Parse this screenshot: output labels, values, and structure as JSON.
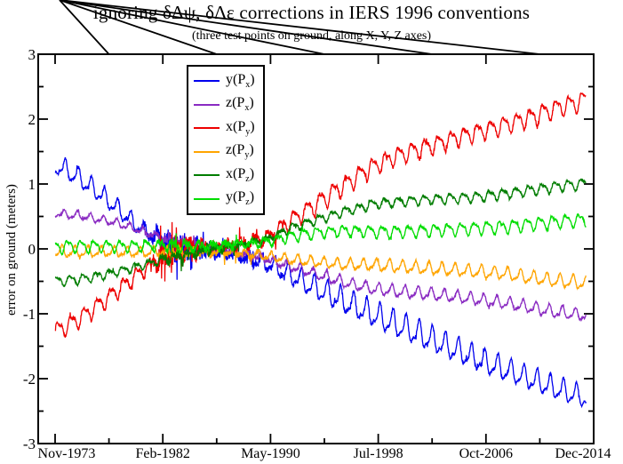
{
  "chart_data": {
    "type": "line",
    "title": "ignoring δΔψ, δΔε corrections in IERS 1996 conventions",
    "subtitle": "(three test points on ground, along X, Y, Z axes)",
    "xlabel": "",
    "ylabel": "error on ground (meters)",
    "ylim": [
      -3,
      3
    ],
    "y_ticks": [
      "3",
      "2",
      "1",
      "0",
      "-1",
      "-2",
      "-3"
    ],
    "y_minor_step": 0.5,
    "x_ticks": [
      "Nov-1973",
      "Feb-1982",
      "May-1990",
      "Jul-1998",
      "Oct-2006",
      "Dec-2014"
    ],
    "x_tick_years": [
      1973.875,
      1982.092,
      1990.308,
      1998.525,
      2006.742,
      2014.958
    ],
    "grid": false,
    "legend_position": "upper-left-inside",
    "oscillation": "annual wiggles + high-frequency noise burst 1981-1990",
    "frame_color": "#000000",
    "series": [
      {
        "id": "y-px",
        "func": "y",
        "point_sub": "x",
        "label_plain": "y(Px)",
        "color": "#0000ee",
        "phase": 0.12,
        "trend": [
          [
            1973.9,
            1.3
          ],
          [
            1975,
            1.18
          ],
          [
            1976,
            1.05
          ],
          [
            1977,
            0.9
          ],
          [
            1978,
            0.73
          ],
          [
            1979,
            0.55
          ],
          [
            1980,
            0.38
          ],
          [
            1981,
            0.24
          ],
          [
            1982,
            0.12
          ],
          [
            1983,
            0.04
          ],
          [
            1984,
            0.0
          ],
          [
            1986,
            -0.03
          ],
          [
            1988,
            -0.09
          ],
          [
            1990,
            -0.22
          ],
          [
            1992,
            -0.42
          ],
          [
            1994,
            -0.63
          ],
          [
            1996,
            -0.82
          ],
          [
            1998,
            -1.0
          ],
          [
            2000,
            -1.18
          ],
          [
            2002,
            -1.35
          ],
          [
            2004,
            -1.52
          ],
          [
            2006,
            -1.7
          ],
          [
            2008,
            -1.85
          ],
          [
            2010,
            -2.0
          ],
          [
            2012,
            -2.15
          ],
          [
            2014.4,
            -2.3
          ]
        ],
        "annual_amp": [
          [
            1973.9,
            -0.17
          ],
          [
            1980,
            -0.14
          ],
          [
            1983,
            -0.08
          ],
          [
            1987,
            -0.06
          ],
          [
            1990,
            -0.14
          ],
          [
            1994,
            -0.2
          ],
          [
            2000,
            -0.22
          ],
          [
            2006,
            -0.2
          ],
          [
            2014.4,
            -0.18
          ]
        ],
        "noise_env": [
          [
            1973.9,
            0.02
          ],
          [
            1980.5,
            0.03
          ],
          [
            1981.5,
            0.12
          ],
          [
            1982.5,
            0.22
          ],
          [
            1984,
            0.18
          ],
          [
            1985.5,
            0.1
          ],
          [
            1988,
            0.08
          ],
          [
            1990,
            0.05
          ],
          [
            1992,
            0.03
          ],
          [
            2014.4,
            0.02
          ]
        ]
      },
      {
        "id": "z-px",
        "func": "z",
        "point_sub": "x",
        "label_plain": "z(Px)",
        "color": "#8a2bc2",
        "phase": 0.2,
        "trend": [
          [
            1973.9,
            0.55
          ],
          [
            1976,
            0.5
          ],
          [
            1978,
            0.43
          ],
          [
            1980,
            0.31
          ],
          [
            1982,
            0.17
          ],
          [
            1984,
            0.07
          ],
          [
            1986,
            0.01
          ],
          [
            1988,
            -0.06
          ],
          [
            1990,
            -0.15
          ],
          [
            1992,
            -0.28
          ],
          [
            1994,
            -0.4
          ],
          [
            1996,
            -0.52
          ],
          [
            1998,
            -0.61
          ],
          [
            2000,
            -0.66
          ],
          [
            2002,
            -0.69
          ],
          [
            2004,
            -0.73
          ],
          [
            2006,
            -0.78
          ],
          [
            2008,
            -0.83
          ],
          [
            2010,
            -0.9
          ],
          [
            2012,
            -0.97
          ],
          [
            2014.4,
            -1.03
          ]
        ],
        "annual_amp": [
          [
            1973.9,
            -0.07
          ],
          [
            1982,
            -0.06
          ],
          [
            1987,
            -0.04
          ],
          [
            1992,
            -0.08
          ],
          [
            2000,
            -0.1
          ],
          [
            2014.4,
            -0.1
          ]
        ],
        "noise_env": [
          [
            1973.9,
            0.015
          ],
          [
            1981,
            0.02
          ],
          [
            1982.5,
            0.07
          ],
          [
            1986,
            0.06
          ],
          [
            1989,
            0.04
          ],
          [
            1992,
            0.02
          ],
          [
            2014.4,
            0.015
          ]
        ]
      },
      {
        "id": "x-py",
        "func": "x",
        "point_sub": "y",
        "label_plain": "x(Py)",
        "color": "#ee0000",
        "phase": 0.12,
        "trend": [
          [
            1973.9,
            -1.27
          ],
          [
            1975,
            -1.16
          ],
          [
            1976,
            -1.03
          ],
          [
            1977,
            -0.89
          ],
          [
            1978,
            -0.74
          ],
          [
            1979,
            -0.58
          ],
          [
            1980,
            -0.42
          ],
          [
            1981,
            -0.27
          ],
          [
            1982,
            -0.13
          ],
          [
            1983,
            -0.04
          ],
          [
            1984,
            0.0
          ],
          [
            1986,
            0.02
          ],
          [
            1988,
            0.07
          ],
          [
            1990,
            0.16
          ],
          [
            1992,
            0.46
          ],
          [
            1994,
            0.72
          ],
          [
            1996,
            1.0
          ],
          [
            1998,
            1.26
          ],
          [
            2000,
            1.44
          ],
          [
            2002,
            1.56
          ],
          [
            2004,
            1.68
          ],
          [
            2006,
            1.8
          ],
          [
            2008,
            1.9
          ],
          [
            2010,
            2.02
          ],
          [
            2012,
            2.16
          ],
          [
            2014.4,
            2.3
          ]
        ],
        "annual_amp": [
          [
            1973.9,
            0.15
          ],
          [
            1980,
            0.13
          ],
          [
            1983,
            0.08
          ],
          [
            1987,
            0.06
          ],
          [
            1990,
            0.13
          ],
          [
            1994,
            0.16
          ],
          [
            2000,
            0.15
          ],
          [
            2006,
            0.14
          ],
          [
            2014.4,
            0.16
          ]
        ],
        "noise_env": [
          [
            1973.9,
            0.02
          ],
          [
            1980.5,
            0.03
          ],
          [
            1981.5,
            0.12
          ],
          [
            1982.5,
            0.22
          ],
          [
            1984,
            0.18
          ],
          [
            1985.5,
            0.1
          ],
          [
            1988,
            0.08
          ],
          [
            1990,
            0.05
          ],
          [
            1992,
            0.03
          ],
          [
            2014.4,
            0.02
          ]
        ]
      },
      {
        "id": "z-py",
        "func": "z",
        "point_sub": "y",
        "label_plain": "z(Py)",
        "color": "#ffa500",
        "phase": 0.38,
        "trend": [
          [
            1973.9,
            -0.05
          ],
          [
            1978,
            -0.05
          ],
          [
            1982,
            -0.05
          ],
          [
            1986,
            -0.05
          ],
          [
            1988,
            -0.07
          ],
          [
            1990,
            -0.11
          ],
          [
            1992,
            -0.17
          ],
          [
            1994,
            -0.21
          ],
          [
            1996,
            -0.24
          ],
          [
            1998,
            -0.25
          ],
          [
            2000,
            -0.27
          ],
          [
            2002,
            -0.3
          ],
          [
            2004,
            -0.32
          ],
          [
            2006,
            -0.35
          ],
          [
            2008,
            -0.38
          ],
          [
            2010,
            -0.44
          ],
          [
            2012,
            -0.49
          ],
          [
            2014.4,
            -0.53
          ]
        ],
        "annual_amp": [
          [
            1973.9,
            -0.1
          ],
          [
            1982,
            -0.07
          ],
          [
            1987,
            -0.05
          ],
          [
            1992,
            -0.08
          ],
          [
            2000,
            -0.1
          ],
          [
            2014.4,
            -0.11
          ]
        ],
        "noise_env": [
          [
            1973.9,
            0.015
          ],
          [
            1981,
            0.02
          ],
          [
            1982.5,
            0.07
          ],
          [
            1986,
            0.06
          ],
          [
            1989,
            0.04
          ],
          [
            1992,
            0.02
          ],
          [
            2014.4,
            0.015
          ]
        ]
      },
      {
        "id": "x-pz",
        "func": "x",
        "point_sub": "z",
        "label_plain": "x(Pz)",
        "color": "#007d00",
        "phase": 0.2,
        "trend": [
          [
            1973.9,
            -0.5
          ],
          [
            1976,
            -0.46
          ],
          [
            1978,
            -0.38
          ],
          [
            1980,
            -0.28
          ],
          [
            1982,
            -0.17
          ],
          [
            1984,
            -0.07
          ],
          [
            1986,
            -0.01
          ],
          [
            1988,
            0.06
          ],
          [
            1990,
            0.15
          ],
          [
            1992,
            0.33
          ],
          [
            1994,
            0.46
          ],
          [
            1996,
            0.58
          ],
          [
            1998,
            0.68
          ],
          [
            2000,
            0.73
          ],
          [
            2002,
            0.76
          ],
          [
            2004,
            0.78
          ],
          [
            2006,
            0.8
          ],
          [
            2008,
            0.85
          ],
          [
            2010,
            0.9
          ],
          [
            2012,
            0.96
          ],
          [
            2014.4,
            1.01
          ]
        ],
        "annual_amp": [
          [
            1973.9,
            0.08
          ],
          [
            1982,
            0.06
          ],
          [
            1987,
            0.04
          ],
          [
            1992,
            0.07
          ],
          [
            2000,
            0.08
          ],
          [
            2014.4,
            0.09
          ]
        ],
        "noise_env": [
          [
            1973.9,
            0.015
          ],
          [
            1981,
            0.02
          ],
          [
            1982.5,
            0.07
          ],
          [
            1986,
            0.06
          ],
          [
            1989,
            0.04
          ],
          [
            1992,
            0.02
          ],
          [
            2014.4,
            0.015
          ]
        ]
      },
      {
        "id": "y-pz",
        "func": "y",
        "point_sub": "z",
        "label_plain": "y(Pz)",
        "color": "#00dd00",
        "phase": 0.38,
        "trend": [
          [
            1973.9,
            0.04
          ],
          [
            1978,
            0.04
          ],
          [
            1982,
            0.05
          ],
          [
            1986,
            0.05
          ],
          [
            1988,
            0.07
          ],
          [
            1990,
            0.11
          ],
          [
            1992,
            0.2
          ],
          [
            1994,
            0.26
          ],
          [
            1996,
            0.28
          ],
          [
            1998,
            0.27
          ],
          [
            2000,
            0.27
          ],
          [
            2002,
            0.28
          ],
          [
            2004,
            0.3
          ],
          [
            2006,
            0.32
          ],
          [
            2008,
            0.34
          ],
          [
            2010,
            0.38
          ],
          [
            2012,
            0.42
          ],
          [
            2014.4,
            0.45
          ]
        ],
        "annual_amp": [
          [
            1973.9,
            0.11
          ],
          [
            1982,
            0.08
          ],
          [
            1987,
            0.05
          ],
          [
            1992,
            0.09
          ],
          [
            2000,
            0.1
          ],
          [
            2014.4,
            0.11
          ]
        ],
        "noise_env": [
          [
            1973.9,
            0.015
          ],
          [
            1981,
            0.02
          ],
          [
            1982.5,
            0.07
          ],
          [
            1986,
            0.06
          ],
          [
            1989,
            0.04
          ],
          [
            1992,
            0.02
          ],
          [
            2014.4,
            0.015
          ]
        ]
      }
    ]
  }
}
